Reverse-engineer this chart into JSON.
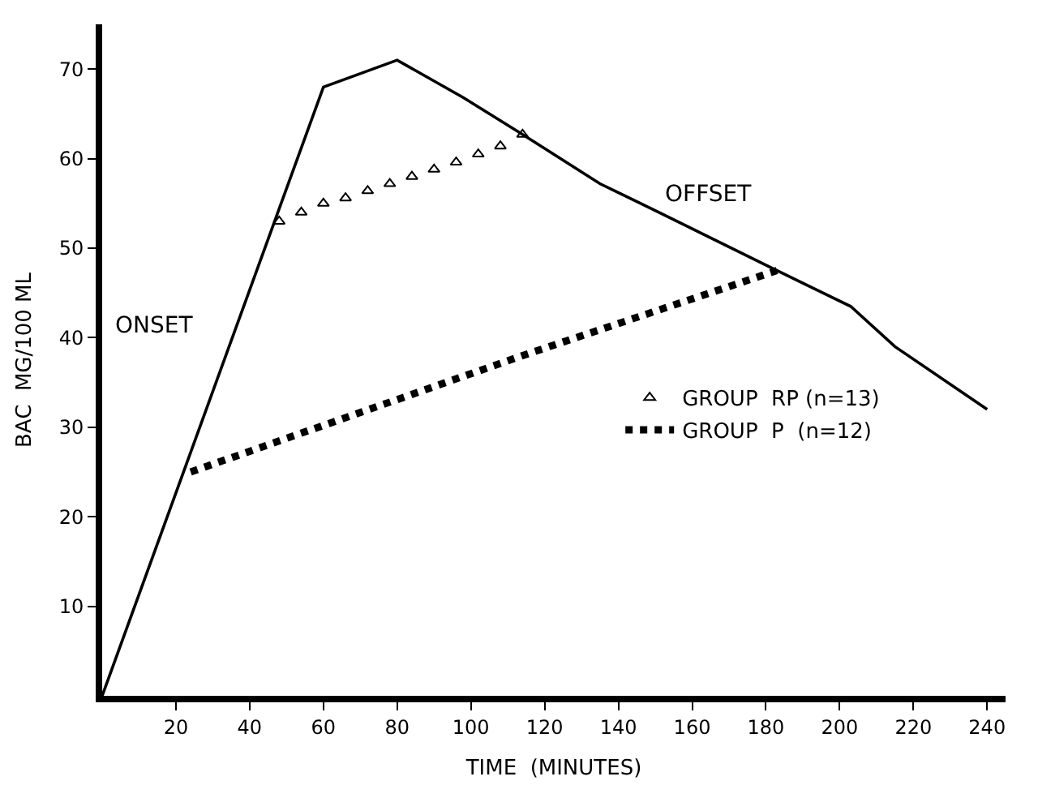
{
  "chart_data": {
    "type": "line",
    "xlabel": "TIME  (MINUTES)",
    "ylabel": "BAC  MG/100 ML",
    "xlim": [
      0,
      245
    ],
    "ylim": [
      0,
      75
    ],
    "xticks": [
      20,
      40,
      60,
      80,
      100,
      120,
      140,
      160,
      180,
      200,
      220,
      240
    ],
    "yticks": [
      10,
      20,
      30,
      40,
      50,
      60,
      70
    ],
    "legend": "right",
    "series": [
      {
        "color": "#000000",
        "x": [
          0,
          60,
          80,
          98,
          114,
          135,
          151,
          181,
          203,
          215,
          240
        ],
        "values": [
          0,
          68,
          71,
          66.8,
          62.7,
          57.2,
          54,
          47.9,
          43.5,
          39,
          32
        ],
        "line_style": "solid",
        "marker": "none"
      },
      {
        "name": "GROUP  RP (n=13)",
        "type": "scatter",
        "color": "#000000",
        "marker": "triangle",
        "x": [
          48,
          54,
          60,
          66,
          72,
          78,
          84,
          90,
          96,
          102,
          108,
          114
        ],
        "values": [
          53,
          54,
          55,
          55.6,
          56.4,
          57.2,
          58,
          58.8,
          59.6,
          60.5,
          61.4,
          62.7
        ]
      },
      {
        "name": "GROUP  P  (n=12)",
        "color": "#000000",
        "line_style": "dotted",
        "marker": "none",
        "x": [
          24,
          114,
          183
        ],
        "values": [
          25,
          38,
          47.5
        ]
      }
    ],
    "annotations": [
      "ONSET",
      "OFFSET"
    ]
  }
}
